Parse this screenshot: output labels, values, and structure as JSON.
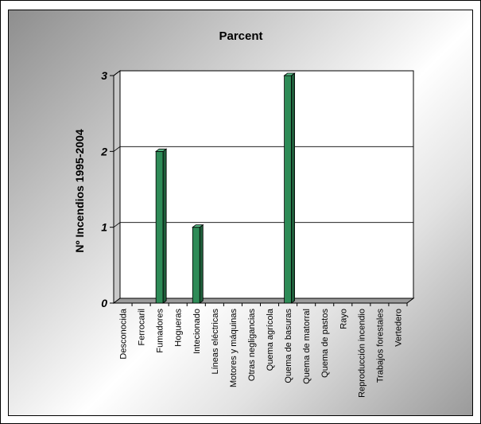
{
  "chart_data": {
    "type": "bar",
    "title": "Parcent",
    "xlabel": "",
    "ylabel": "Nº Incendios 1995-2004",
    "ylim": [
      0,
      3
    ],
    "yticks": [
      "0",
      "1",
      "2",
      "3"
    ],
    "grid": true,
    "categories": [
      "Desconocida",
      "Ferrocaril",
      "Fumadores",
      "Hogueras",
      "Intecionado",
      "Líneas eléctricas",
      "Motores y máquinas",
      "Otras negligancias",
      "Quema agrícola",
      "Quema de basuras",
      "Quema de matorral",
      "Quema de pastos",
      "Rayo",
      "Reproducción incendio",
      "Trabajos forestales",
      "Vertedero"
    ],
    "values": [
      0,
      0,
      2,
      0,
      1,
      0,
      0,
      0,
      0,
      3,
      0,
      0,
      0,
      0,
      0,
      0
    ],
    "colors": {
      "bar_front": "#2e8b57",
      "bar_side": "#1f5e3b",
      "bar_top": "#5cbf8a"
    }
  }
}
